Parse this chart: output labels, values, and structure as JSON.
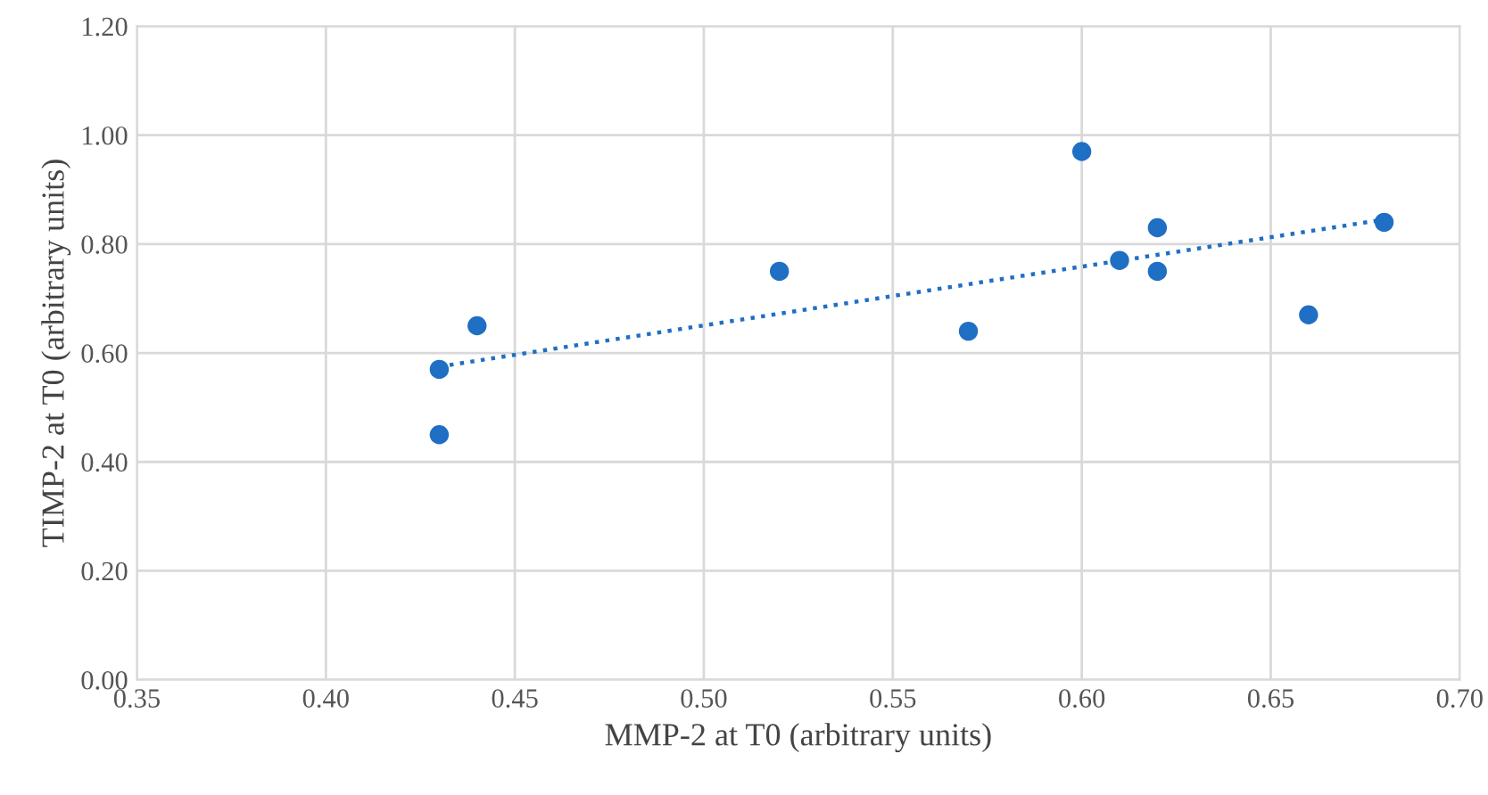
{
  "chart_data": {
    "type": "scatter",
    "xlabel": "MMP-2 at T0 (arbitrary units)",
    "ylabel": "TIMP-2 at T0 (arbitrary units)",
    "series": [
      {
        "color": "#1f6fc4",
        "marker": "circle",
        "x": [
          0.43,
          0.43,
          0.44,
          0.52,
          0.57,
          0.6,
          0.61,
          0.62,
          0.62,
          0.66,
          0.68
        ],
        "values": [
          0.57,
          0.45,
          0.65,
          0.75,
          0.64,
          0.97,
          0.77,
          0.83,
          0.75,
          0.67,
          0.84
        ]
      },
      {
        "type": "line",
        "color": "#1f6fc4",
        "line_style": "dotted",
        "marker": "none",
        "x": [
          0.43,
          0.68
        ],
        "values": [
          0.575,
          0.845
        ]
      }
    ],
    "xlim": [
      0.35,
      0.7
    ],
    "xticks": [
      {
        "value": 0.35,
        "label": "0.35"
      },
      {
        "value": 0.4,
        "label": "0.40"
      },
      {
        "value": 0.45,
        "label": "0.45"
      },
      {
        "value": 0.5,
        "label": "0.50"
      },
      {
        "value": 0.55,
        "label": "0.55"
      },
      {
        "value": 0.6,
        "label": "0.60"
      },
      {
        "value": 0.65,
        "label": "0.65"
      },
      {
        "value": 0.7,
        "label": "0.70"
      }
    ],
    "ylim": [
      0,
      1.2
    ],
    "yticks": [
      {
        "value": 0,
        "label": "0.00"
      },
      {
        "value": 0.2,
        "label": "0.20"
      },
      {
        "value": 0.4,
        "label": "0.40"
      },
      {
        "value": 0.6,
        "label": "0.60"
      },
      {
        "value": 0.8,
        "label": "0.80"
      },
      {
        "value": 1.0,
        "label": "1.00"
      },
      {
        "value": 1.2,
        "label": "1.20"
      }
    ],
    "grid": true
  }
}
